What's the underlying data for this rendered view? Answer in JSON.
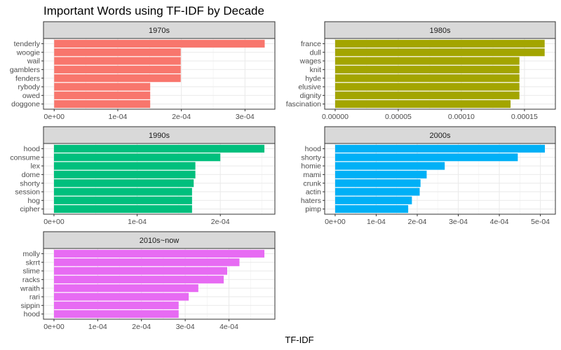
{
  "chart_data": {
    "type": "bar",
    "orientation": "horizontal",
    "title": "Important Words using TF-IDF by Decade",
    "xlabel": "TF-IDF",
    "grid": true,
    "legend": "none",
    "panels": [
      {
        "name": "1970s",
        "color": "#F8766D",
        "categories": [
          "tenderly",
          "woogie",
          "wail",
          "gamblers",
          "fenders",
          "rybody",
          "owed",
          "doggone"
        ],
        "values": [
          0.000331,
          0.000199,
          0.000199,
          0.000199,
          0.000199,
          0.000151,
          0.000151,
          0.000151
        ],
        "xlim": [
          -1.68e-05,
          0.000347
        ],
        "ticks": [
          0,
          0.0001,
          0.0002,
          0.0003
        ],
        "tick_labels": [
          "0e+00",
          "1e-04",
          "2e-04",
          "3e-04"
        ]
      },
      {
        "name": "1980s",
        "color": "#A3A500",
        "categories": [
          "france",
          "dull",
          "wages",
          "knit",
          "hyde",
          "elusive",
          "dignity",
          "fascination"
        ],
        "values": [
          0.000166,
          0.000166,
          0.000146,
          0.000146,
          0.000146,
          0.000146,
          0.000146,
          0.000139
        ],
        "xlim": [
          -8.3e-06,
          0.0001745
        ],
        "ticks": [
          0,
          5e-05,
          0.0001,
          0.00015
        ],
        "tick_labels": [
          "0.00000",
          "0.00005",
          "0.00010",
          "0.00015"
        ]
      },
      {
        "name": "1990s",
        "color": "#00BF7D",
        "categories": [
          "hood",
          "consume",
          "lex",
          "dome",
          "shorty",
          "session",
          "hog",
          "cipher"
        ],
        "values": [
          0.000253,
          0.0002,
          0.00017,
          0.00017,
          0.000168,
          0.000166,
          0.000166,
          0.000166
        ],
        "xlim": [
          -1.26e-05,
          0.0002656
        ],
        "ticks": [
          0,
          0.0001,
          0.0002
        ],
        "tick_labels": [
          "0e+00",
          "1e-04",
          "2e-04"
        ]
      },
      {
        "name": "2000s",
        "color": "#00B0F6",
        "categories": [
          "hood",
          "shorty",
          "homie",
          "mami",
          "crunk",
          "actin",
          "haters",
          "pimp"
        ],
        "values": [
          0.000511,
          0.000445,
          0.000267,
          0.000223,
          0.000208,
          0.000206,
          0.000187,
          0.000178
        ],
        "xlim": [
          -2.55e-05,
          0.0005366
        ],
        "ticks": [
          0,
          0.0001,
          0.0002,
          0.0003,
          0.0004,
          0.0005
        ],
        "tick_labels": [
          "0e+00",
          "1e-04",
          "2e-04",
          "3e-04",
          "4e-04",
          "5e-04"
        ]
      },
      {
        "name": "2010s~now",
        "color": "#E76BF3",
        "categories": [
          "molly",
          "skrrt",
          "slime",
          "racks",
          "wraith",
          "rari",
          "sippin",
          "hood"
        ],
        "values": [
          0.000481,
          0.000424,
          0.000396,
          0.000388,
          0.00033,
          0.000308,
          0.000285,
          0.000285
        ],
        "xlim": [
          -2.4e-05,
          0.000505
        ],
        "ticks": [
          0,
          0.0001,
          0.0002,
          0.0003,
          0.0004
        ],
        "tick_labels": [
          "0e+00",
          "1e-04",
          "2e-04",
          "3e-04",
          "4e-04"
        ]
      }
    ]
  }
}
